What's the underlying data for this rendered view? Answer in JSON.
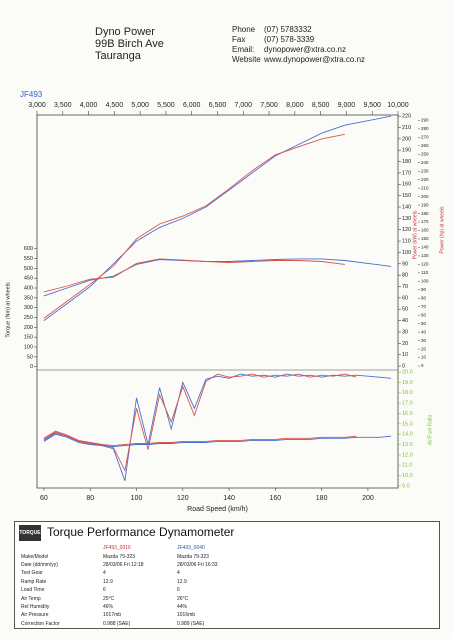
{
  "header": {
    "company": [
      "Dyno Power",
      "99B Birch Ave",
      "Tauranga"
    ],
    "contact": [
      [
        "Phone",
        "(07) 5783332"
      ],
      [
        "Fax",
        "(07) 578-3339"
      ],
      [
        "Email:",
        "dynopower@xtra.co.nz"
      ],
      [
        "Website",
        "www.dynopower@xtra.co.nz"
      ]
    ]
  },
  "chart_data": [
    {
      "type": "line",
      "title": "JF493",
      "x": [
        60,
        70,
        80,
        90,
        100,
        110,
        120,
        130,
        140,
        150,
        160,
        170,
        180,
        190,
        200,
        210
      ],
      "xlim": [
        57,
        213
      ],
      "x2lim": [
        3000,
        10000
      ],
      "x2ticks": [
        {
          "value": 3000,
          "label": "3,000"
        },
        {
          "value": 3500,
          "label": "3,500"
        },
        {
          "value": 4000,
          "label": "4,000"
        },
        {
          "value": 4500,
          "label": "4,500"
        },
        {
          "value": 5000,
          "label": "5,000"
        },
        {
          "value": 5500,
          "label": "5,500"
        },
        {
          "value": 6000,
          "label": "6,000"
        },
        {
          "value": 6500,
          "label": "6,500"
        },
        {
          "value": 7000,
          "label": "7,000"
        },
        {
          "value": 7500,
          "label": "7,500"
        },
        {
          "value": 8000,
          "label": "8,000"
        },
        {
          "value": 8500,
          "label": "8,500"
        },
        {
          "value": 9000,
          "label": "9,000"
        },
        {
          "value": 9500,
          "label": "9,500"
        },
        {
          "value": 10000,
          "label": "10,000"
        }
      ],
      "ylabel": "Torque (Nm) at wheels",
      "ylim": [
        -17,
        1280
      ],
      "yticks": [
        0,
        50,
        100,
        150,
        200,
        250,
        300,
        350,
        400,
        450,
        500,
        550,
        600
      ],
      "y2label": "Power (kW) at wheels",
      "y2lim": [
        -3.5,
        221
      ],
      "y2ticks": [
        0,
        10,
        20,
        30,
        40,
        50,
        60,
        70,
        80,
        90,
        100,
        110,
        120,
        130,
        140,
        150,
        160,
        170,
        180,
        190,
        200,
        210,
        220
      ],
      "y3label": "Power (hp) at wheels",
      "y3lim": [
        -4.7,
        296.4
      ],
      "y3ticks": [
        0,
        10,
        20,
        30,
        40,
        50,
        60,
        70,
        80,
        90,
        100,
        110,
        120,
        130,
        140,
        150,
        160,
        170,
        180,
        190,
        200,
        210,
        220,
        230,
        240,
        250,
        260,
        270,
        280,
        290
      ],
      "series": [
        {
          "color": "#4a6fd0",
          "axis": "y2",
          "values": [
            40,
            55,
            70,
            90,
            110,
            122,
            130,
            140,
            155,
            170,
            185,
            195,
            205,
            212,
            216,
            220
          ]
        },
        {
          "color": "#d9534f",
          "axis": "y2",
          "values": [
            42,
            57,
            72,
            88,
            112,
            125,
            132,
            141,
            156,
            172,
            186,
            193,
            200,
            204,
            null,
            null
          ]
        },
        {
          "color": "#4a6fd0",
          "values": [
            360,
            400,
            440,
            460,
            520,
            545,
            540,
            535,
            535,
            540,
            545,
            548,
            548,
            540,
            525,
            510
          ]
        },
        {
          "color": "#d9534f",
          "values": [
            380,
            410,
            445,
            455,
            525,
            548,
            542,
            535,
            530,
            535,
            540,
            540,
            535,
            520,
            null,
            null
          ]
        }
      ]
    },
    {
      "type": "line",
      "x": [
        60,
        65,
        70,
        75,
        80,
        85,
        90,
        95,
        100,
        105,
        110,
        115,
        120,
        125,
        130,
        135,
        140,
        145,
        150,
        155,
        160,
        165,
        170,
        175,
        180,
        185,
        190,
        195,
        200,
        205,
        210
      ],
      "xlim": [
        57,
        213
      ],
      "xlabel": "Road Speed (km/h)",
      "xticks": [
        60,
        80,
        100,
        120,
        140,
        160,
        180,
        200
      ],
      "ylabel": "Air/Fuel Ratio",
      "ylim": [
        8.8,
        20.2
      ],
      "yticks": [
        {
          "value": 9,
          "label": "9.0"
        },
        {
          "value": 10,
          "label": "10.0"
        },
        {
          "value": 11,
          "label": "11.0"
        },
        {
          "value": 12,
          "label": "12.0"
        },
        {
          "value": 13,
          "label": "13.0"
        },
        {
          "value": 14,
          "label": "14.0"
        },
        {
          "value": 15,
          "label": "15.0"
        },
        {
          "value": 16,
          "label": "16.0"
        },
        {
          "value": 17,
          "label": "17.0"
        },
        {
          "value": 18,
          "label": "18.0"
        },
        {
          "value": 19,
          "label": "19.0"
        },
        {
          "value": 20,
          "label": "20.0"
        }
      ],
      "color": "#7fbf3f",
      "series": [
        {
          "color": "#4a6fd0",
          "values": [
            13.4,
            14.1,
            13.8,
            13.3,
            13.1,
            12.9,
            12.6,
            9.5,
            17.5,
            13.0,
            18.5,
            14.5,
            19.0,
            16.5,
            19.3,
            19.6,
            19.4,
            19.8,
            19.6,
            19.7,
            19.5,
            19.8,
            19.6,
            19.7,
            19.5,
            19.7,
            19.6,
            19.7,
            19.6,
            19.5,
            19.4
          ]
        },
        {
          "color": "#d9534f",
          "values": [
            13.6,
            14.3,
            13.9,
            13.4,
            13.2,
            13.0,
            12.7,
            10.5,
            16.5,
            12.5,
            17.8,
            15.2,
            18.6,
            15.8,
            19.1,
            19.8,
            19.5,
            19.6,
            19.8,
            19.5,
            19.7,
            19.6,
            19.8,
            19.5,
            19.7,
            19.6,
            19.8,
            19.5,
            null,
            null,
            null
          ]
        },
        {
          "color": "#4a6fd0",
          "values": [
            13.3,
            14.0,
            13.7,
            13.2,
            13.0,
            12.9,
            12.8,
            12.9,
            13.0,
            13.0,
            13.1,
            13.1,
            13.2,
            13.2,
            13.2,
            13.3,
            13.3,
            13.3,
            13.4,
            13.4,
            13.4,
            13.5,
            13.5,
            13.5,
            13.6,
            13.6,
            13.6,
            13.7,
            13.7,
            13.7,
            13.8
          ]
        },
        {
          "color": "#d9534f",
          "values": [
            13.5,
            14.2,
            13.8,
            13.3,
            13.1,
            13.0,
            12.9,
            13.0,
            13.1,
            13.1,
            13.2,
            13.2,
            13.3,
            13.3,
            13.3,
            13.4,
            13.4,
            13.4,
            13.5,
            13.5,
            13.5,
            13.6,
            13.6,
            13.6,
            13.7,
            13.7,
            13.7,
            13.8,
            null,
            null,
            null
          ]
        }
      ]
    }
  ],
  "table": {
    "logo": "TORQUE",
    "title": "Torque Performance Dynamometer",
    "columns": [
      "JF493_0016",
      "JF493_0040"
    ],
    "rows": [
      [
        "Make/Model",
        "Mazda 79-323",
        "Mazda 79-323"
      ],
      [
        "Date (dd/mm/yy)",
        "28/03/06 Fri 12:18",
        "28/03/06 Fri 16:33"
      ],
      [
        "Test Gear",
        "4",
        "4"
      ],
      [
        "Ramp Rate",
        "12.9",
        "12.9"
      ],
      [
        "Load Time",
        "6",
        "6"
      ],
      [
        "Air Temp",
        "25°C",
        "26°C"
      ],
      [
        "Rel Humidity",
        "46%",
        "44%"
      ],
      [
        "Air Pressure",
        "1017mb",
        "1016mb"
      ],
      [
        "Correction Factor",
        "0.988 (SAE)",
        "0.989 (SAE)"
      ]
    ]
  }
}
